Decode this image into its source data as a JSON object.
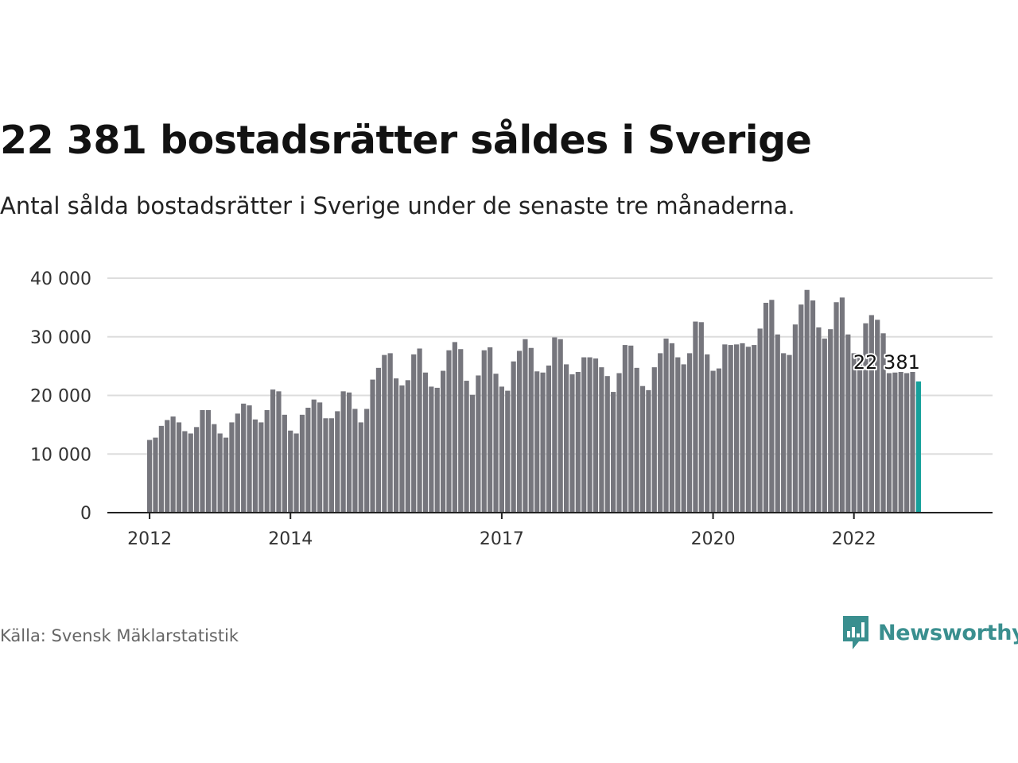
{
  "header": {
    "title": "22 381 bostadsrätter såldes i Sverige",
    "subtitle": "Antal sålda bostadsrätter i Sverige under de senaste tre månaderna."
  },
  "footer": {
    "source": "Källa: Svensk Mäklarstatistik",
    "brand": "Newsworthy",
    "brand_icon": "bar-chart-speech-bubble-icon"
  },
  "colors": {
    "bar": "#76767d",
    "highlight": "#16a09b",
    "grid": "#dddddd",
    "axis": "#222222",
    "brand": "#3a8f8f"
  },
  "chart_data": {
    "type": "bar",
    "highlight_label": "22 381",
    "ylim": [
      0,
      40000
    ],
    "yticks": [
      0,
      10000,
      20000,
      30000,
      40000
    ],
    "ytick_labels": [
      "0",
      "10 000",
      "20 000",
      "30 000",
      "40 000"
    ],
    "xticks": [
      {
        "label": "2012",
        "index": 0
      },
      {
        "label": "2014",
        "index": 24
      },
      {
        "label": "2017",
        "index": 60
      },
      {
        "label": "2020",
        "index": 96
      },
      {
        "label": "2022",
        "index": 120
      }
    ],
    "grid": true,
    "values": [
      12400,
      12800,
      14800,
      15800,
      16400,
      15400,
      13900,
      13500,
      14600,
      17500,
      17500,
      15100,
      13500,
      12800,
      15400,
      16900,
      18600,
      18300,
      15900,
      15400,
      17500,
      21000,
      20700,
      16700,
      14000,
      13500,
      16700,
      17900,
      19300,
      18800,
      16100,
      16100,
      17300,
      20700,
      20500,
      17700,
      15400,
      17700,
      22700,
      24700,
      26900,
      27200,
      22900,
      21700,
      22600,
      27000,
      28000,
      23900,
      21500,
      21300,
      24200,
      27700,
      29100,
      27900,
      22500,
      20100,
      23400,
      27700,
      28200,
      23700,
      21500,
      20800,
      25800,
      27600,
      29600,
      28100,
      24100,
      23900,
      25100,
      29900,
      29600,
      25300,
      23600,
      24000,
      26500,
      26500,
      26300,
      24800,
      23300,
      20600,
      23800,
      28600,
      28500,
      24700,
      21600,
      20900,
      24800,
      27200,
      29700,
      28900,
      26500,
      25300,
      27200,
      32600,
      32500,
      27000,
      24200,
      24600,
      28700,
      28600,
      28700,
      28900,
      28300,
      28600,
      31400,
      35800,
      36300,
      30400,
      27200,
      26900,
      32100,
      35500,
      38000,
      36200,
      31600,
      29700,
      31300,
      35900,
      36700,
      30400,
      27200,
      26800,
      32300,
      33700,
      32900,
      30600,
      23800,
      23900,
      24000,
      23800,
      24000,
      22381
    ]
  }
}
